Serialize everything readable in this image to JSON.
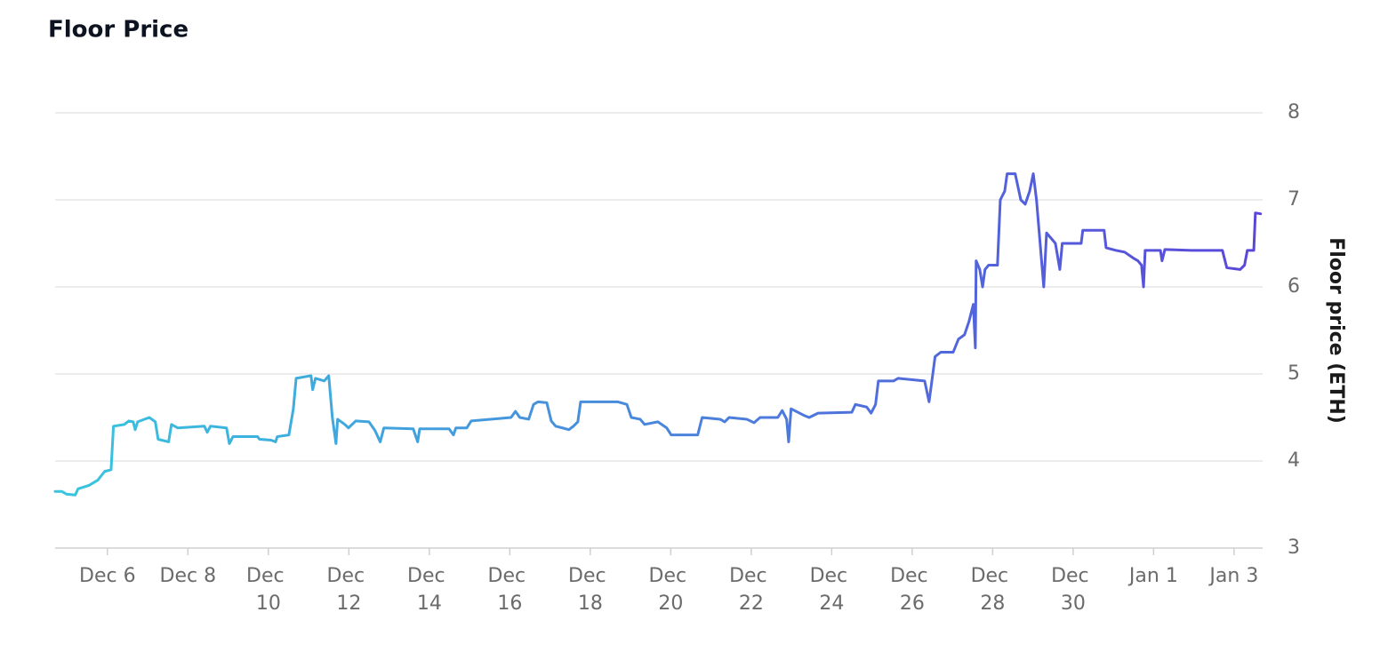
{
  "chart_data": {
    "type": "line",
    "title": "Floor Price",
    "y_label": "Floor price (ETH)",
    "gradient": [
      "#38c6de",
      "#5a46da"
    ],
    "grid": true,
    "xlim": [
      4.7,
      34.71
    ],
    "ylim": [
      3,
      8
    ],
    "yticks": [
      3,
      4,
      5,
      6,
      7,
      8
    ],
    "xticks": [
      {
        "value": 6,
        "label": "Dec 6"
      },
      {
        "value": 8,
        "label": "Dec 8"
      },
      {
        "value": 10,
        "label": "Dec 10"
      },
      {
        "value": 12,
        "label": "Dec 12"
      },
      {
        "value": 14,
        "label": "Dec 14"
      },
      {
        "value": 16,
        "label": "Dec 16"
      },
      {
        "value": 18,
        "label": "Dec 18"
      },
      {
        "value": 20,
        "label": "Dec 20"
      },
      {
        "value": 22,
        "label": "Dec 22"
      },
      {
        "value": 24,
        "label": "Dec 24"
      },
      {
        "value": 26,
        "label": "Dec 26"
      },
      {
        "value": 28,
        "label": "Dec 28"
      },
      {
        "value": 30,
        "label": "Dec 30"
      },
      {
        "value": 32,
        "label": "Jan 1"
      },
      {
        "value": 34,
        "label": "Jan 3"
      }
    ],
    "x": [
      4.7,
      4.87,
      4.98,
      5.2,
      5.27,
      5.54,
      5.76,
      5.93,
      6.09,
      6.15,
      6.42,
      6.53,
      6.64,
      6.69,
      6.75,
      7.04,
      7.19,
      7.26,
      7.52,
      7.59,
      7.75,
      8.41,
      8.48,
      8.56,
      8.96,
      9.03,
      9.12,
      9.73,
      9.78,
      10.07,
      10.18,
      10.22,
      10.51,
      10.62,
      10.69,
      11.06,
      11.1,
      11.17,
      11.39,
      11.5,
      11.59,
      11.68,
      11.72,
      11.9,
      11.99,
      12.17,
      12.5,
      12.65,
      12.78,
      12.87,
      13.6,
      13.71,
      13.76,
      14.49,
      14.6,
      14.66,
      14.93,
      15.04,
      16.03,
      16.14,
      16.25,
      16.47,
      16.59,
      16.7,
      16.92,
      17.03,
      17.14,
      17.31,
      17.47,
      17.58,
      17.69,
      17.76,
      18.68,
      18.91,
      19.02,
      19.24,
      19.35,
      19.68,
      19.9,
      20.01,
      20.67,
      20.78,
      21.23,
      21.34,
      21.45,
      21.89,
      22.07,
      22.22,
      22.66,
      22.77,
      22.88,
      22.93,
      22.99,
      23.33,
      23.44,
      23.66,
      24.5,
      24.59,
      24.87,
      24.98,
      25.09,
      25.16,
      25.54,
      25.65,
      26.09,
      26.31,
      26.42,
      26.49,
      26.57,
      26.71,
      27.02,
      27.15,
      27.3,
      27.41,
      27.52,
      27.57,
      27.59,
      27.68,
      27.75,
      27.81,
      27.9,
      28.12,
      28.19,
      28.3,
      28.36,
      28.56,
      28.7,
      28.81,
      28.92,
      29.01,
      29.09,
      29.18,
      29.27,
      29.34,
      29.47,
      29.56,
      29.67,
      29.73,
      30.2,
      30.24,
      30.77,
      30.82,
      31.06,
      31.28,
      31.5,
      31.61,
      31.7,
      31.75,
      31.79,
      32.17,
      32.21,
      32.28,
      32.94,
      33.71,
      33.82,
      34.15,
      34.26,
      34.33,
      34.49,
      34.53,
      34.66
    ],
    "values": [
      3.65,
      3.65,
      3.62,
      3.61,
      3.68,
      3.72,
      3.78,
      3.88,
      3.9,
      4.4,
      4.42,
      4.46,
      4.45,
      4.36,
      4.45,
      4.5,
      4.45,
      4.25,
      4.22,
      4.42,
      4.38,
      4.4,
      4.33,
      4.4,
      4.38,
      4.2,
      4.28,
      4.28,
      4.25,
      4.24,
      4.22,
      4.28,
      4.3,
      4.6,
      4.95,
      4.98,
      4.82,
      4.95,
      4.92,
      4.98,
      4.5,
      4.2,
      4.48,
      4.42,
      4.38,
      4.46,
      4.45,
      4.35,
      4.22,
      4.38,
      4.37,
      4.22,
      4.37,
      4.37,
      4.3,
      4.38,
      4.38,
      4.46,
      4.5,
      4.57,
      4.5,
      4.48,
      4.65,
      4.68,
      4.67,
      4.46,
      4.4,
      4.38,
      4.36,
      4.4,
      4.45,
      4.68,
      4.68,
      4.65,
      4.5,
      4.48,
      4.42,
      4.45,
      4.38,
      4.3,
      4.3,
      4.5,
      4.48,
      4.45,
      4.5,
      4.48,
      4.44,
      4.5,
      4.5,
      4.58,
      4.48,
      4.22,
      4.6,
      4.52,
      4.5,
      4.55,
      4.56,
      4.65,
      4.62,
      4.55,
      4.65,
      4.92,
      4.92,
      4.95,
      4.93,
      4.92,
      4.68,
      4.92,
      5.2,
      5.25,
      5.25,
      5.4,
      5.45,
      5.6,
      5.8,
      5.3,
      6.3,
      6.2,
      6.0,
      6.2,
      6.25,
      6.25,
      7.0,
      7.1,
      7.3,
      7.3,
      7.0,
      6.95,
      7.1,
      7.3,
      7.0,
      6.5,
      6.0,
      6.62,
      6.55,
      6.5,
      6.2,
      6.5,
      6.5,
      6.65,
      6.65,
      6.45,
      6.42,
      6.4,
      6.33,
      6.3,
      6.25,
      6.0,
      6.42,
      6.42,
      6.3,
      6.43,
      6.42,
      6.42,
      6.22,
      6.2,
      6.25,
      6.42,
      6.42,
      6.85,
      6.84
    ]
  }
}
